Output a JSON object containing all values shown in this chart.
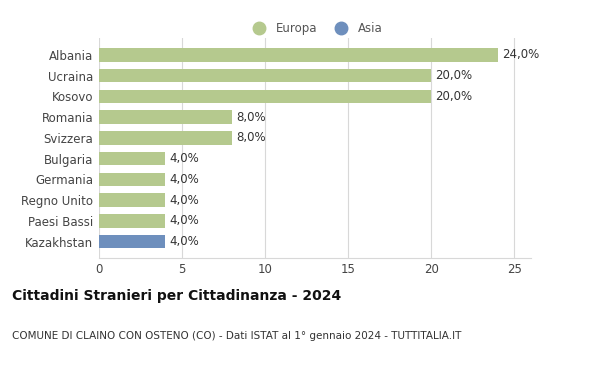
{
  "categories": [
    "Albania",
    "Ucraina",
    "Kosovo",
    "Romania",
    "Svizzera",
    "Bulgaria",
    "Germania",
    "Regno Unito",
    "Paesi Bassi",
    "Kazakhstan"
  ],
  "values": [
    24.0,
    20.0,
    20.0,
    8.0,
    8.0,
    4.0,
    4.0,
    4.0,
    4.0,
    4.0
  ],
  "labels": [
    "24,0%",
    "20,0%",
    "20,0%",
    "8,0%",
    "8,0%",
    "4,0%",
    "4,0%",
    "4,0%",
    "4,0%",
    "4,0%"
  ],
  "bar_colors": [
    "#b5c98e",
    "#b5c98e",
    "#b5c98e",
    "#b5c98e",
    "#b5c98e",
    "#b5c98e",
    "#b5c98e",
    "#b5c98e",
    "#b5c98e",
    "#6e8fbd"
  ],
  "europa_color": "#b5c98e",
  "asia_color": "#6e8fbd",
  "title": "Cittadini Stranieri per Cittadinanza - 2024",
  "subtitle": "COMUNE DI CLAINO CON OSTENO (CO) - Dati ISTAT al 1° gennaio 2024 - TUTTITALIA.IT",
  "xlim": [
    0,
    26
  ],
  "xticks": [
    0,
    5,
    10,
    15,
    20,
    25
  ],
  "background_color": "#ffffff",
  "grid_color": "#d8d8d8",
  "title_fontsize": 10,
  "subtitle_fontsize": 7.5,
  "tick_fontsize": 8.5,
  "label_fontsize": 8.5
}
